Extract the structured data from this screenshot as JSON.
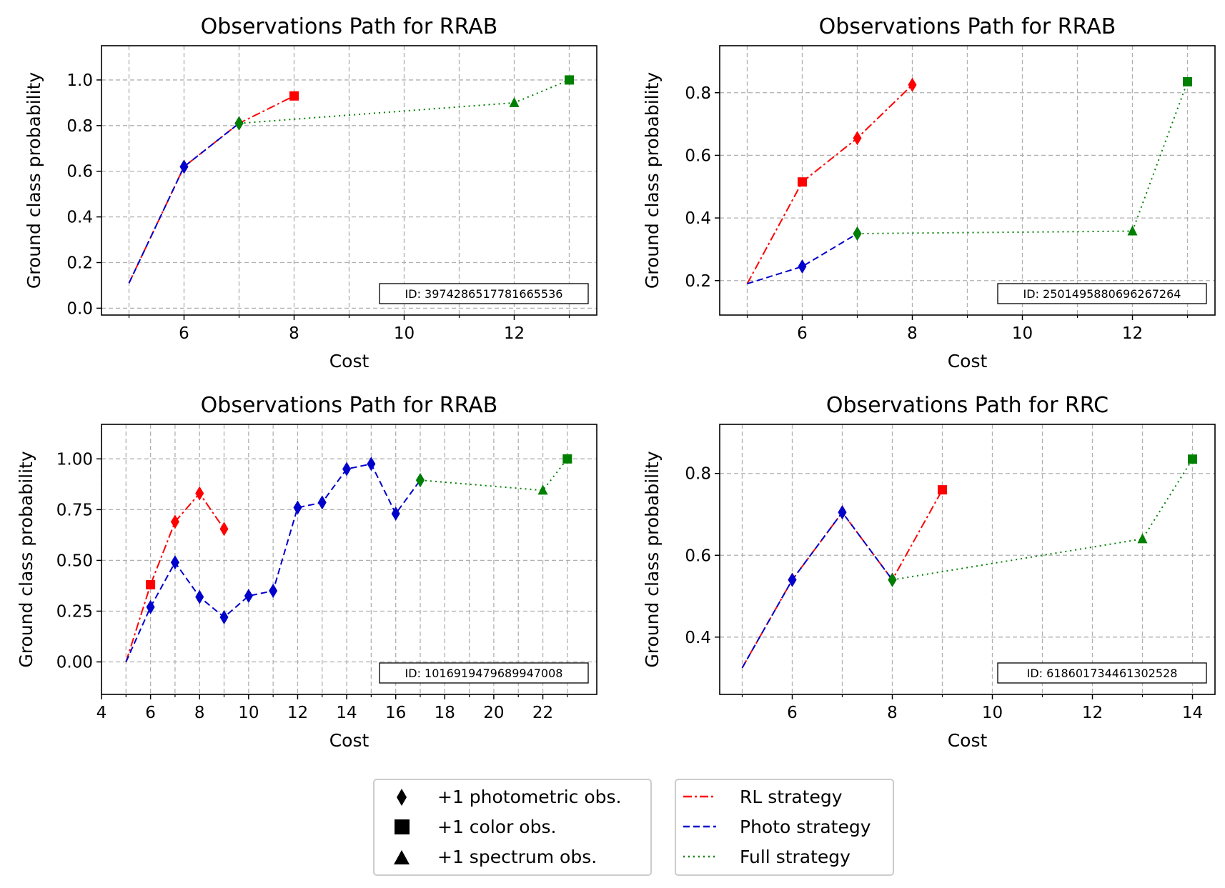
{
  "colors": {
    "rl": "#ff0000",
    "photo": "#0000cc",
    "full": "#008000",
    "grid": "#b0b0b0",
    "axis": "#000000"
  },
  "chart_data": [
    {
      "type": "line",
      "title": "Observations Path for RRAB",
      "xlabel": "Cost",
      "ylabel": "Ground class probability",
      "id_label": "ID: 3974286517781665536",
      "xlim": [
        4.5,
        13.5
      ],
      "ylim": [
        -0.03,
        1.15
      ],
      "x_ticks": [
        6,
        8,
        10,
        12
      ],
      "x_minor": [
        5,
        7,
        9,
        11,
        13
      ],
      "y_ticks": [
        0.0,
        0.2,
        0.4,
        0.6,
        0.8,
        1.0
      ],
      "y_tick_labels": [
        "0.0",
        "0.2",
        "0.4",
        "0.6",
        "0.8",
        "1.0"
      ],
      "grid": true,
      "series": [
        {
          "name": "RL strategy",
          "x": [
            5,
            6,
            7,
            8
          ],
          "y": [
            0.11,
            0.62,
            0.81,
            0.93
          ],
          "markers": [
            "none",
            "diamond",
            "diamond",
            "square"
          ]
        },
        {
          "name": "Photo strategy",
          "x": [
            5,
            6,
            7
          ],
          "y": [
            0.11,
            0.62,
            0.81
          ],
          "markers": [
            "none",
            "diamond",
            "diamond"
          ]
        },
        {
          "name": "Full strategy",
          "x": [
            7,
            12,
            13
          ],
          "y": [
            0.81,
            0.9,
            1.0
          ],
          "markers": [
            "diamond",
            "triangle",
            "square"
          ]
        }
      ]
    },
    {
      "type": "line",
      "title": "Observations Path for RRAB",
      "xlabel": "Cost",
      "ylabel": "Ground class probability",
      "id_label": "ID: 2501495880696267264",
      "xlim": [
        4.5,
        13.5
      ],
      "ylim": [
        0.09,
        0.95
      ],
      "x_ticks": [
        6,
        8,
        10,
        12
      ],
      "x_minor": [
        5,
        7,
        9,
        11,
        13
      ],
      "y_ticks": [
        0.2,
        0.4,
        0.6,
        0.8
      ],
      "y_tick_labels": [
        "0.2",
        "0.4",
        "0.6",
        "0.8"
      ],
      "grid": true,
      "series": [
        {
          "name": "RL strategy",
          "x": [
            5,
            6,
            7,
            8
          ],
          "y": [
            0.19,
            0.515,
            0.655,
            0.825
          ],
          "markers": [
            "none",
            "square",
            "diamond",
            "diamond"
          ]
        },
        {
          "name": "Photo strategy",
          "x": [
            5,
            6,
            7
          ],
          "y": [
            0.19,
            0.245,
            0.35
          ],
          "markers": [
            "none",
            "diamond",
            "diamond"
          ]
        },
        {
          "name": "Full strategy",
          "x": [
            7,
            12,
            13
          ],
          "y": [
            0.35,
            0.358,
            0.835
          ],
          "markers": [
            "diamond",
            "triangle",
            "square"
          ]
        }
      ]
    },
    {
      "type": "line",
      "title": "Observations Path for RRAB",
      "xlabel": "Cost",
      "ylabel": "Ground class probability",
      "id_label": "ID: 1016919479689947008",
      "xlim": [
        4.0,
        24.2
      ],
      "ylim": [
        -0.16,
        1.17
      ],
      "x_ticks": [
        4,
        6,
        8,
        10,
        12,
        14,
        16,
        18,
        20,
        22
      ],
      "x_minor": [
        5,
        7,
        9,
        11,
        13,
        15,
        17,
        19,
        21,
        23
      ],
      "y_ticks": [
        0.0,
        0.25,
        0.5,
        0.75,
        1.0
      ],
      "y_tick_labels": [
        "0.00",
        "0.25",
        "0.50",
        "0.75",
        "1.00"
      ],
      "grid": true,
      "series": [
        {
          "name": "RL strategy",
          "x": [
            5,
            6,
            7,
            8,
            9
          ],
          "y": [
            0.0,
            0.38,
            0.69,
            0.83,
            0.655
          ],
          "markers": [
            "none",
            "square",
            "diamond",
            "diamond",
            "diamond"
          ]
        },
        {
          "name": "Photo strategy",
          "x": [
            5,
            6,
            7,
            8,
            9,
            10,
            11,
            12,
            13,
            14,
            15,
            16,
            17
          ],
          "y": [
            0.0,
            0.27,
            0.49,
            0.32,
            0.22,
            0.325,
            0.35,
            0.76,
            0.785,
            0.95,
            0.975,
            0.73,
            0.895
          ],
          "markers": [
            "none",
            "diamond",
            "diamond",
            "diamond",
            "diamond",
            "diamond",
            "diamond",
            "diamond",
            "diamond",
            "diamond",
            "diamond",
            "diamond",
            "diamond"
          ]
        },
        {
          "name": "Full strategy",
          "x": [
            17,
            22,
            23
          ],
          "y": [
            0.895,
            0.845,
            1.0
          ],
          "markers": [
            "diamond",
            "triangle",
            "square"
          ]
        }
      ]
    },
    {
      "type": "line",
      "title": "Observations Path for RRC",
      "xlabel": "Cost",
      "ylabel": "Ground class probability",
      "id_label": "ID: 618601734461302528",
      "xlim": [
        4.55,
        14.45
      ],
      "ylim": [
        0.26,
        0.92
      ],
      "x_ticks": [
        6,
        8,
        10,
        12,
        14
      ],
      "x_minor": [
        5,
        7,
        9,
        11,
        13
      ],
      "y_ticks": [
        0.4,
        0.6,
        0.8
      ],
      "y_tick_labels": [
        "0.4",
        "0.6",
        "0.8"
      ],
      "grid": true,
      "series": [
        {
          "name": "RL strategy",
          "x": [
            5,
            6,
            7,
            8,
            9
          ],
          "y": [
            0.325,
            0.54,
            0.705,
            0.54,
            0.76
          ],
          "markers": [
            "none",
            "diamond",
            "diamond",
            "diamond",
            "square"
          ]
        },
        {
          "name": "Photo strategy",
          "x": [
            5,
            6,
            7,
            8
          ],
          "y": [
            0.325,
            0.54,
            0.705,
            0.54
          ],
          "markers": [
            "none",
            "diamond",
            "diamond",
            "diamond"
          ]
        },
        {
          "name": "Full strategy",
          "x": [
            8,
            13,
            14
          ],
          "y": [
            0.54,
            0.64,
            0.835
          ],
          "markers": [
            "diamond",
            "triangle",
            "square"
          ]
        }
      ]
    }
  ],
  "legend": {
    "markers": [
      {
        "icon": "diamond",
        "label": "+1 photometric obs."
      },
      {
        "icon": "square",
        "label": "+1 color obs."
      },
      {
        "icon": "triangle",
        "label": "+1 spectrum obs."
      }
    ],
    "lines": [
      {
        "style": "dashdot",
        "label": "RL strategy"
      },
      {
        "style": "dashed",
        "label": "Photo strategy"
      },
      {
        "style": "dotted",
        "label": "Full strategy"
      }
    ]
  }
}
